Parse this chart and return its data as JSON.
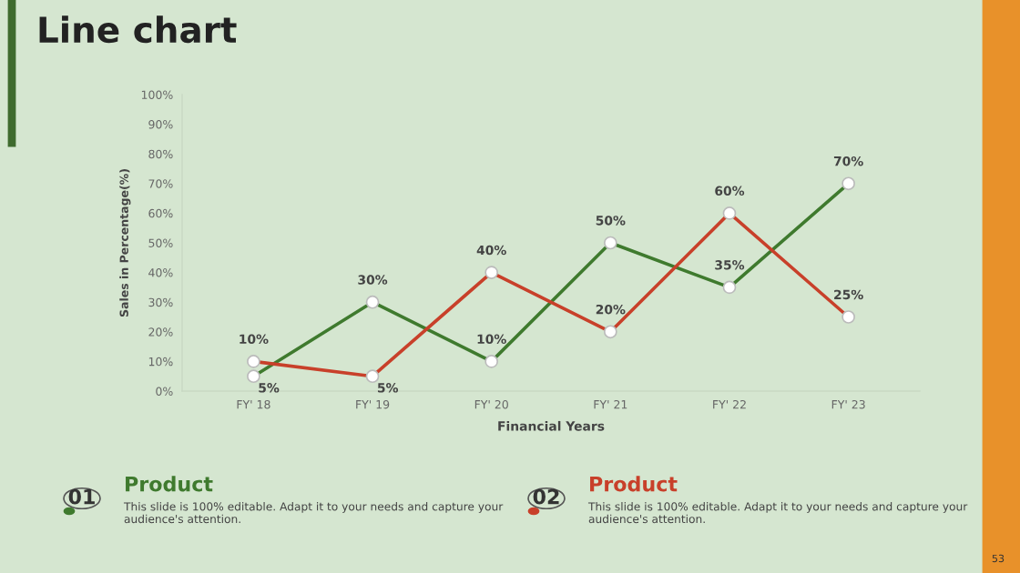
{
  "chart_data": {
    "type": "line",
    "title": "Line chart",
    "categories": [
      "FY' 18",
      "FY' 19",
      "FY' 20",
      "FY' 21",
      "FY' 22",
      "FY' 23"
    ],
    "series": [
      {
        "name": "Product",
        "color": "#3f7a2e",
        "values": [
          5,
          30,
          10,
          50,
          35,
          70
        ],
        "value_labels": [
          "5%",
          "30%",
          "10%",
          "50%",
          "35%",
          "70%"
        ]
      },
      {
        "name": "Product",
        "color": "#c8402a",
        "values": [
          10,
          5,
          40,
          20,
          60,
          25
        ],
        "value_labels": [
          "10%",
          "5%",
          "40%",
          "20%",
          "60%",
          "25%"
        ]
      }
    ],
    "ylim": [
      0,
      100
    ],
    "yticks": [
      {
        "value": 0,
        "label": "0%"
      },
      {
        "value": 10,
        "label": "10%"
      },
      {
        "value": 20,
        "label": "20%"
      },
      {
        "value": 30,
        "label": "30%"
      },
      {
        "value": 40,
        "label": "40%"
      },
      {
        "value": 50,
        "label": "50%"
      },
      {
        "value": 60,
        "label": "60%"
      },
      {
        "value": 70,
        "label": "70%"
      },
      {
        "value": 80,
        "label": "80%"
      },
      {
        "value": 90,
        "label": "90%"
      },
      {
        "value": 100,
        "label": "100%"
      }
    ],
    "xlabel": "Financial Years",
    "ylabel": "Sales in Percentage(%)",
    "marker": "circle",
    "line_style": "solid",
    "grid": false,
    "legend": "bottom",
    "annotations": [
      "01",
      "This slide is 100% editable. Adapt it to your needs and capture your\naudience's attention.",
      "02",
      "This slide is 100% editable. Adapt it to your needs and capture your\naudience's attention.",
      "53"
    ]
  }
}
